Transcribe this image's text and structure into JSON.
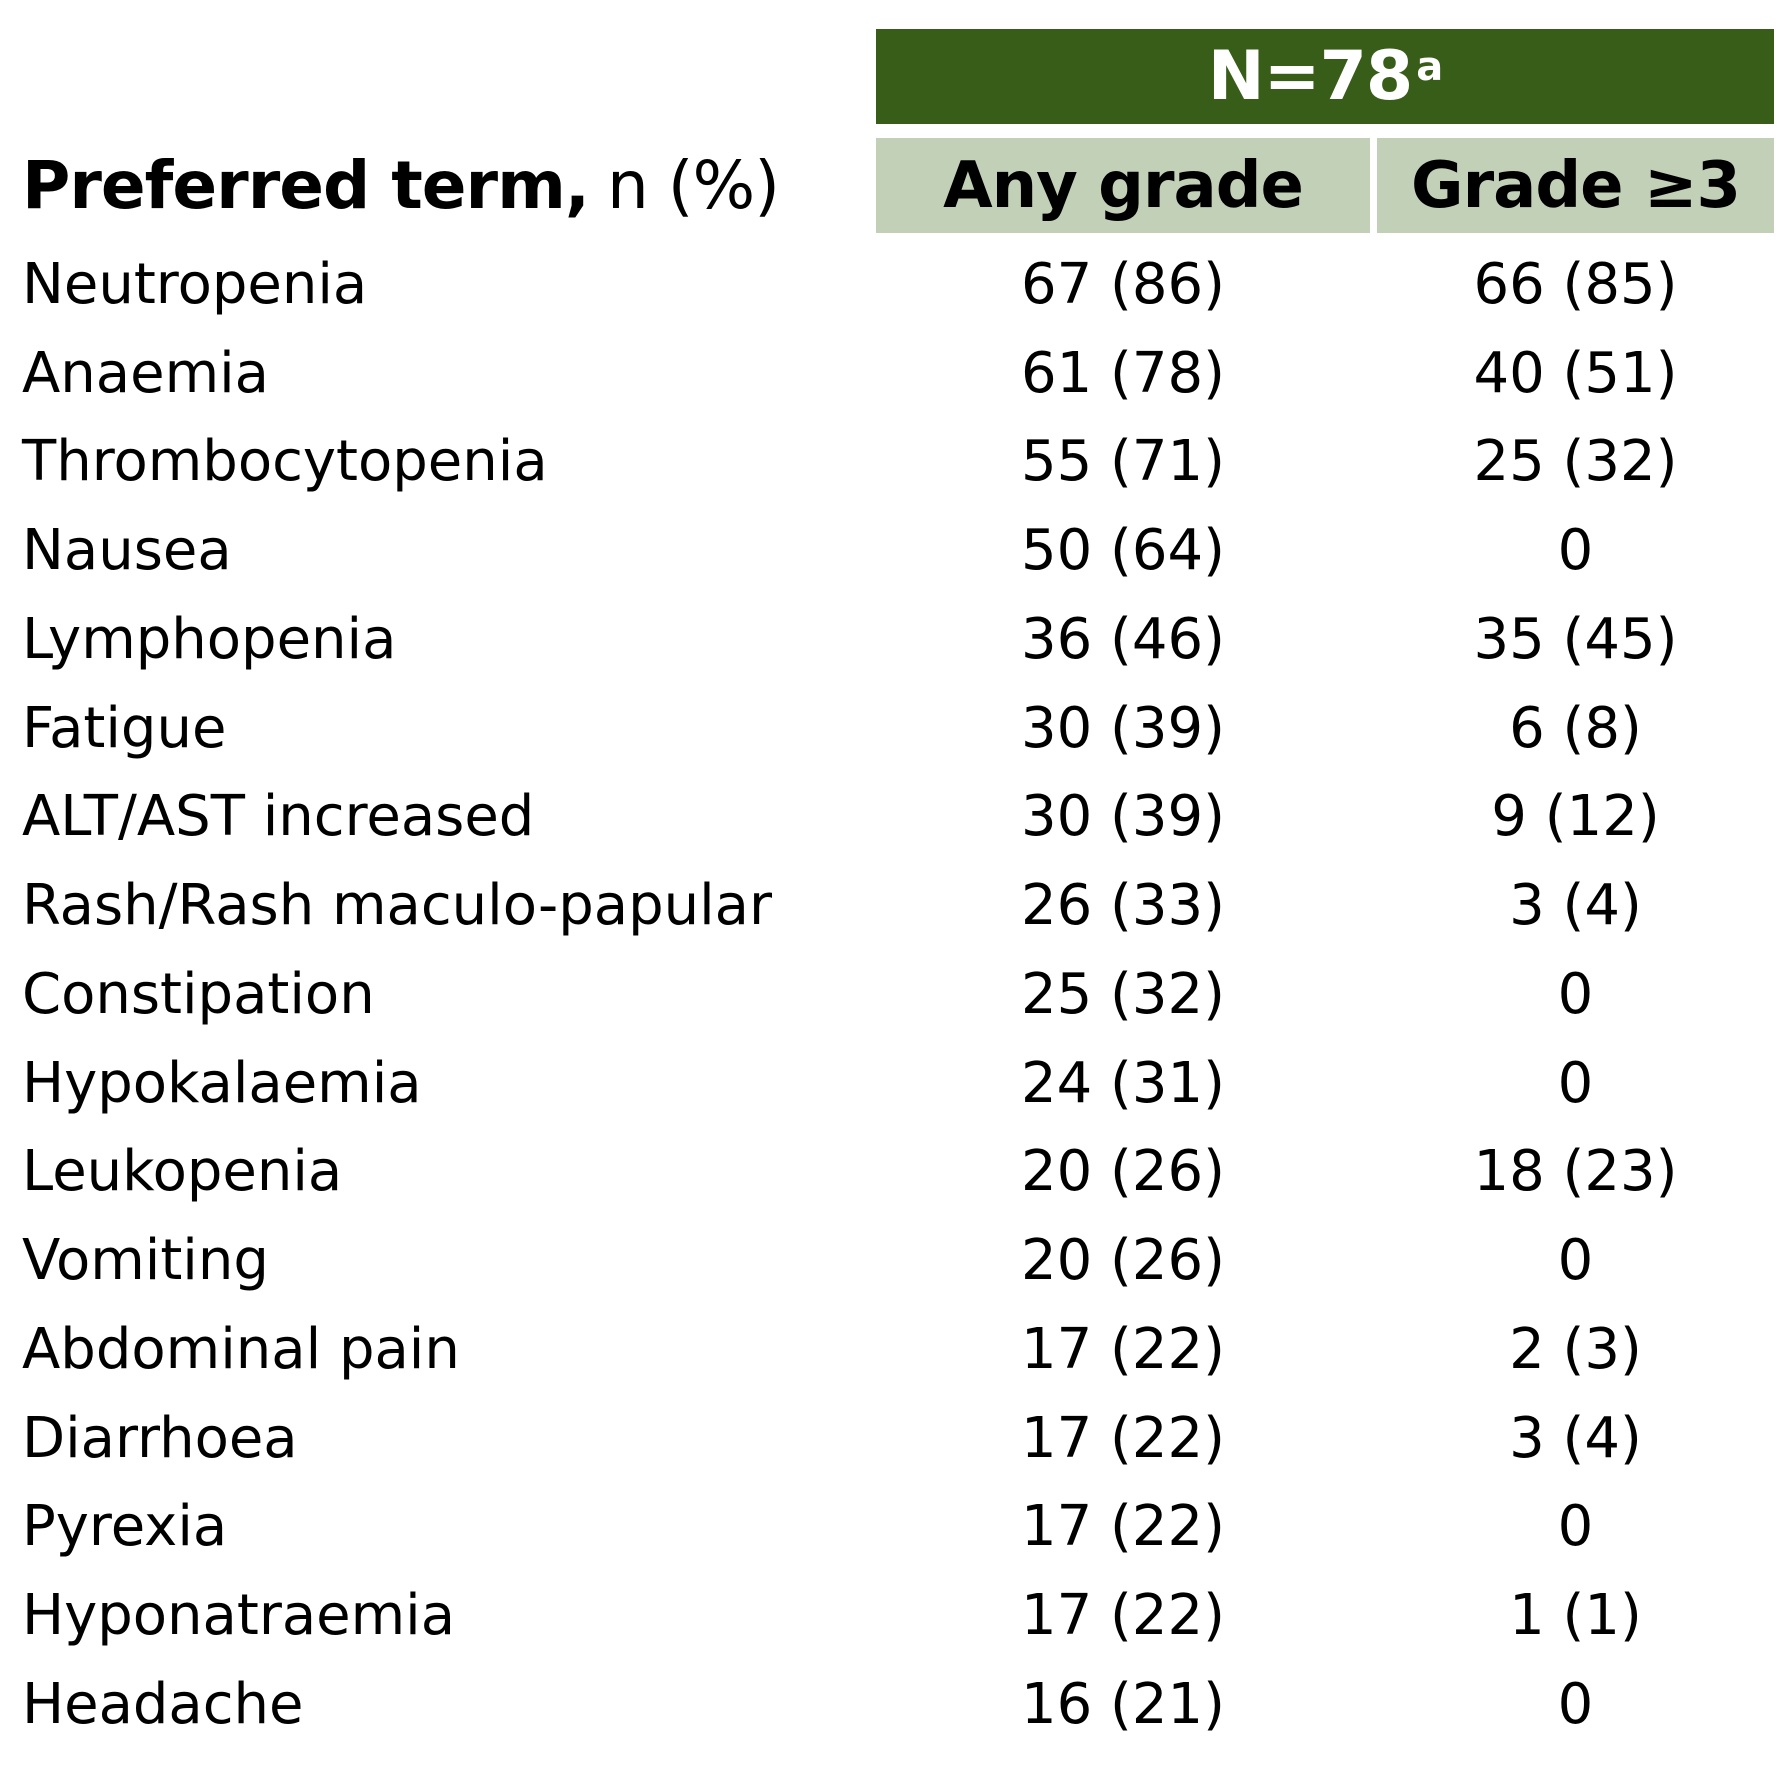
{
  "table": {
    "n_label": "N=78",
    "n_superscript": "a",
    "header_term_bold": "Preferred term,",
    "header_term_rest": "n (%)",
    "col_any_grade": "Any grade",
    "col_grade3": "Grade ≥3",
    "colors": {
      "n_header_bg": "#375d18",
      "col_header_bg": "#c2d0b8"
    },
    "rows": [
      {
        "term": "Neutropenia",
        "any": "67 (86)",
        "g3": "66 (85)"
      },
      {
        "term": "Anaemia",
        "any": "61 (78)",
        "g3": "40 (51)"
      },
      {
        "term": "Thrombocytopenia",
        "any": "55 (71)",
        "g3": "25 (32)"
      },
      {
        "term": "Nausea",
        "any": "50 (64)",
        "g3": "0"
      },
      {
        "term": "Lymphopenia",
        "any": "36 (46)",
        "g3": "35 (45)"
      },
      {
        "term": "Fatigue",
        "any": "30 (39)",
        "g3": "6 (8)"
      },
      {
        "term": "ALT/AST increased",
        "any": "30 (39)",
        "g3": "9 (12)"
      },
      {
        "term": "Rash/Rash maculo-papular",
        "any": "26 (33)",
        "g3": "3 (4)"
      },
      {
        "term": "Constipation",
        "any": "25 (32)",
        "g3": "0"
      },
      {
        "term": "Hypokalaemia",
        "any": "24 (31)",
        "g3": "0"
      },
      {
        "term": "Leukopenia",
        "any": "20 (26)",
        "g3": "18 (23)"
      },
      {
        "term": "Vomiting",
        "any": "20 (26)",
        "g3": "0"
      },
      {
        "term": "Abdominal pain",
        "any": "17 (22)",
        "g3": "2 (3)"
      },
      {
        "term": "Diarrhoea",
        "any": "17 (22)",
        "g3": "3 (4)"
      },
      {
        "term": "Pyrexia",
        "any": "17 (22)",
        "g3": "0"
      },
      {
        "term": "Hyponatraemia",
        "any": "17 (22)",
        "g3": "1 (1)"
      },
      {
        "term": "Headache",
        "any": "16 (21)",
        "g3": "0"
      }
    ]
  }
}
